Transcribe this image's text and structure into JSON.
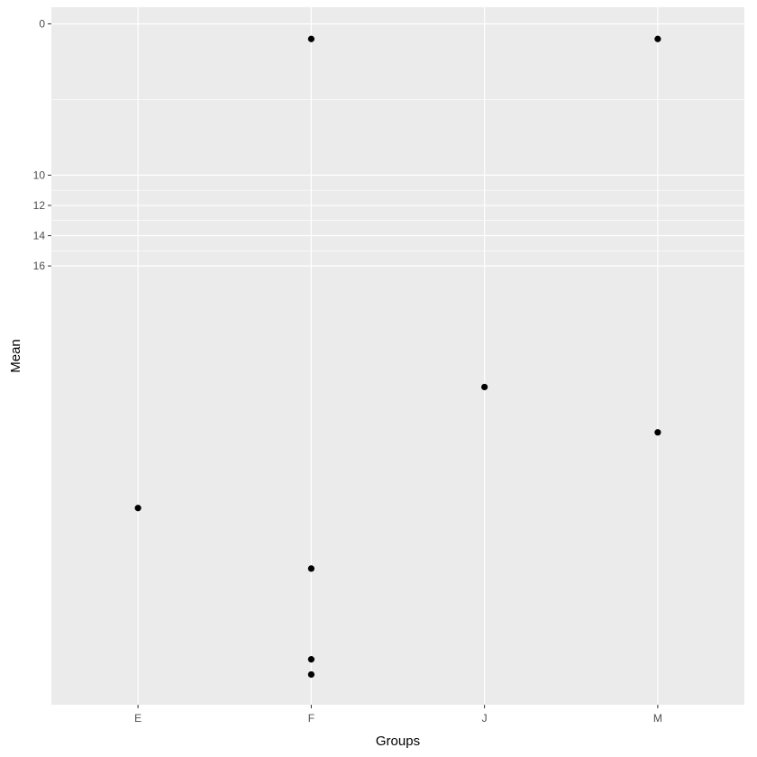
{
  "chart_data": {
    "type": "scatter",
    "title": "",
    "xlabel": "Groups",
    "ylabel": "Mean",
    "categories": [
      "E",
      "F",
      "J",
      "M"
    ],
    "y_ticks": [
      0,
      10,
      12,
      14,
      16
    ],
    "ylim": [
      -1.1,
      45
    ],
    "y_reversed": true,
    "grid": true,
    "legend": "none",
    "points": [
      {
        "x": "E",
        "y": 32
      },
      {
        "x": "F",
        "y": 1
      },
      {
        "x": "F",
        "y": 36
      },
      {
        "x": "F",
        "y": 42
      },
      {
        "x": "F",
        "y": 43
      },
      {
        "x": "J",
        "y": 24
      },
      {
        "x": "M",
        "y": 1
      },
      {
        "x": "M",
        "y": 27
      }
    ],
    "colors": {
      "panel": "#ebebeb",
      "grid": "#ffffff",
      "point": "#000000",
      "tick_mark": "#333333"
    }
  }
}
